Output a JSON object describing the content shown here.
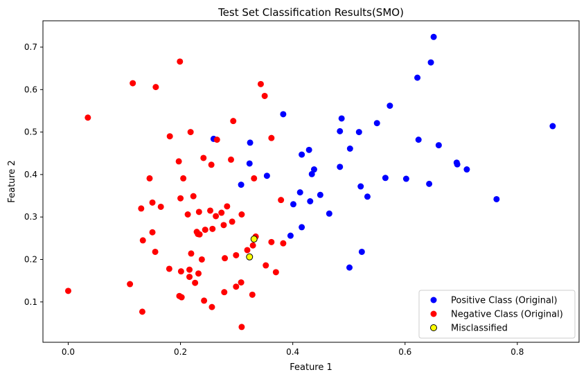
{
  "chart_data": {
    "type": "scatter",
    "title": "Test Set Classification Results(SMO)",
    "xlabel": "Feature 1",
    "ylabel": "Feature 2",
    "xlim": [
      -0.045,
      0.91
    ],
    "ylim": [
      0.005,
      0.762
    ],
    "xticks": [
      0.0,
      0.2,
      0.4,
      0.6,
      0.8
    ],
    "yticks": [
      0.1,
      0.2,
      0.3,
      0.4,
      0.5,
      0.6,
      0.7
    ],
    "xtick_labels": [
      "0.0",
      "0.2",
      "0.4",
      "0.6",
      "0.8"
    ],
    "ytick_labels": [
      "0.1",
      "0.2",
      "0.3",
      "0.4",
      "0.5",
      "0.6",
      "0.7"
    ],
    "grid": false,
    "legend_position": "lower-right",
    "series": [
      {
        "name": "Positive Class (Original)",
        "color": "#0000ff",
        "marker": "circle",
        "points": [
          [
            0.651,
            0.724
          ],
          [
            0.646,
            0.664
          ],
          [
            0.622,
            0.628
          ],
          [
            0.573,
            0.562
          ],
          [
            0.863,
            0.514
          ],
          [
            0.487,
            0.532
          ],
          [
            0.55,
            0.521
          ],
          [
            0.383,
            0.542
          ],
          [
            0.484,
            0.502
          ],
          [
            0.518,
            0.5
          ],
          [
            0.624,
            0.482
          ],
          [
            0.66,
            0.469
          ],
          [
            0.259,
            0.484
          ],
          [
            0.324,
            0.475
          ],
          [
            0.502,
            0.461
          ],
          [
            0.429,
            0.458
          ],
          [
            0.416,
            0.447
          ],
          [
            0.692,
            0.428
          ],
          [
            0.693,
            0.424
          ],
          [
            0.71,
            0.412
          ],
          [
            0.323,
            0.426
          ],
          [
            0.484,
            0.418
          ],
          [
            0.438,
            0.412
          ],
          [
            0.434,
            0.401
          ],
          [
            0.354,
            0.397
          ],
          [
            0.565,
            0.392
          ],
          [
            0.602,
            0.39
          ],
          [
            0.308,
            0.376
          ],
          [
            0.643,
            0.378
          ],
          [
            0.521,
            0.372
          ],
          [
            0.413,
            0.358
          ],
          [
            0.449,
            0.352
          ],
          [
            0.533,
            0.348
          ],
          [
            0.763,
            0.342
          ],
          [
            0.431,
            0.337
          ],
          [
            0.401,
            0.33
          ],
          [
            0.465,
            0.308
          ],
          [
            0.416,
            0.276
          ],
          [
            0.396,
            0.256
          ],
          [
            0.523,
            0.218
          ],
          [
            0.501,
            0.181
          ]
        ]
      },
      {
        "name": "Negative Class (Original)",
        "color": "#ff0000",
        "marker": "circle",
        "points": [
          [
            0.199,
            0.666
          ],
          [
            0.115,
            0.615
          ],
          [
            0.343,
            0.613
          ],
          [
            0.156,
            0.606
          ],
          [
            0.35,
            0.585
          ],
          [
            0.035,
            0.534
          ],
          [
            0.294,
            0.526
          ],
          [
            0.218,
            0.5
          ],
          [
            0.181,
            0.49
          ],
          [
            0.362,
            0.486
          ],
          [
            0.265,
            0.482
          ],
          [
            0.29,
            0.435
          ],
          [
            0.241,
            0.439
          ],
          [
            0.197,
            0.431
          ],
          [
            0.255,
            0.423
          ],
          [
            0.331,
            0.391
          ],
          [
            0.145,
            0.391
          ],
          [
            0.205,
            0.391
          ],
          [
            0.223,
            0.349
          ],
          [
            0.2,
            0.344
          ],
          [
            0.379,
            0.34
          ],
          [
            0.15,
            0.334
          ],
          [
            0.283,
            0.325
          ],
          [
            0.165,
            0.324
          ],
          [
            0.13,
            0.32
          ],
          [
            0.253,
            0.315
          ],
          [
            0.233,
            0.312
          ],
          [
            0.273,
            0.31
          ],
          [
            0.213,
            0.306
          ],
          [
            0.309,
            0.306
          ],
          [
            0.263,
            0.302
          ],
          [
            0.292,
            0.289
          ],
          [
            0.277,
            0.281
          ],
          [
            0.257,
            0.272
          ],
          [
            0.244,
            0.27
          ],
          [
            0.229,
            0.265
          ],
          [
            0.15,
            0.264
          ],
          [
            0.231,
            0.26
          ],
          [
            0.234,
            0.259
          ],
          [
            0.334,
            0.254
          ],
          [
            0.133,
            0.245
          ],
          [
            0.362,
            0.241
          ],
          [
            0.383,
            0.238
          ],
          [
            0.329,
            0.233
          ],
          [
            0.319,
            0.222
          ],
          [
            0.155,
            0.218
          ],
          [
            0.219,
            0.214
          ],
          [
            0.299,
            0.21
          ],
          [
            0.279,
            0.203
          ],
          [
            0.238,
            0.2
          ],
          [
            0.352,
            0.186
          ],
          [
            0.18,
            0.178
          ],
          [
            0.216,
            0.176
          ],
          [
            0.201,
            0.172
          ],
          [
            0.37,
            0.17
          ],
          [
            0.232,
            0.167
          ],
          [
            0.216,
            0.159
          ],
          [
            0.226,
            0.145
          ],
          [
            0.308,
            0.146
          ],
          [
            0.11,
            0.142
          ],
          [
            0.299,
            0.136
          ],
          [
            0.278,
            0.123
          ],
          [
            0.328,
            0.117
          ],
          [
            0.198,
            0.114
          ],
          [
            0.202,
            0.111
          ],
          [
            0.242,
            0.103
          ],
          [
            0.0,
            0.126
          ],
          [
            0.256,
            0.088
          ],
          [
            0.132,
            0.077
          ],
          [
            0.309,
            0.041
          ]
        ]
      },
      {
        "name": "Misclassified",
        "color": "#ffff00",
        "edgecolor": "#000000",
        "marker": "circle",
        "points": [
          [
            0.331,
            0.248
          ],
          [
            0.323,
            0.206
          ]
        ]
      }
    ]
  }
}
